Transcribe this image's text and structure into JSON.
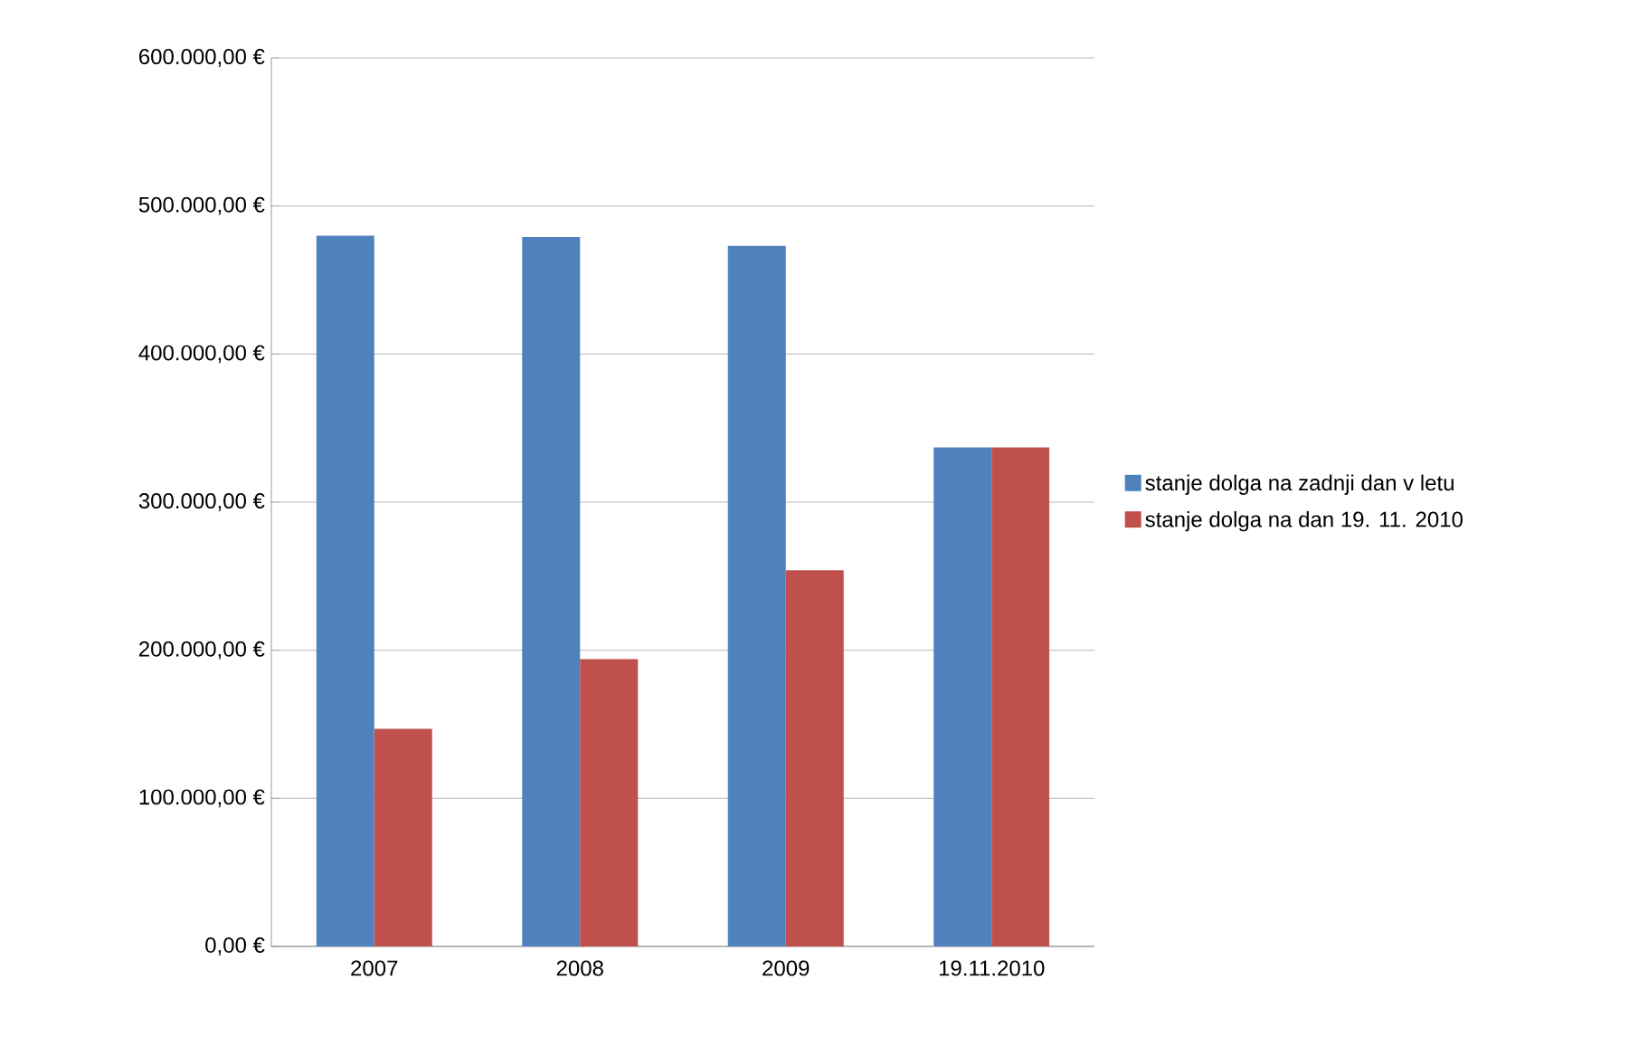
{
  "chart_data": {
    "type": "bar",
    "categories": [
      "2007",
      "2008",
      "2009",
      "19.11.2010"
    ],
    "series": [
      {
        "name": "stanje dolga na zadnji dan v letu",
        "color": "#4f81bd",
        "values": [
          480000,
          479000,
          473000,
          337000
        ]
      },
      {
        "name": "stanje dolga na dan 19. 11. 2010",
        "color": "#c0504d",
        "values": [
          147000,
          194000,
          254000,
          337000
        ]
      }
    ],
    "ylim": [
      0,
      600000
    ],
    "yticks": [
      {
        "value": 0,
        "label": "0,00 €"
      },
      {
        "value": 100000,
        "label": "100.000,00 €"
      },
      {
        "value": 200000,
        "label": "200.000,00 €"
      },
      {
        "value": 300000,
        "label": "300.000,00 €"
      },
      {
        "value": 400000,
        "label": "400.000,00 €"
      },
      {
        "value": 500000,
        "label": "500.000,00 €"
      },
      {
        "value": 600000,
        "label": "600.000,00 €"
      }
    ],
    "grid": "y",
    "legend": "right"
  }
}
